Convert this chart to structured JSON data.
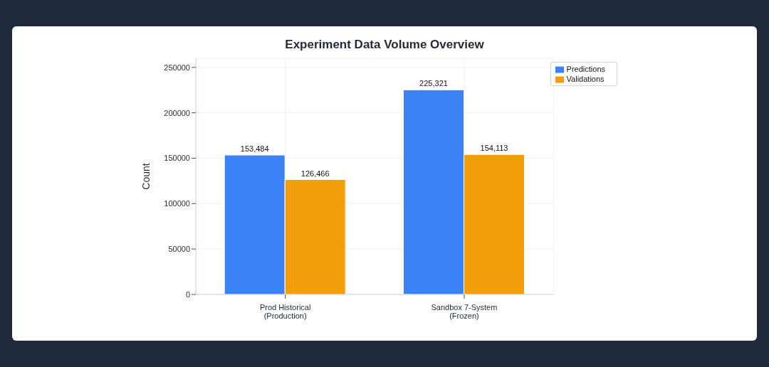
{
  "chart_data": {
    "type": "bar",
    "title": "Experiment Data Volume Overview",
    "ylabel": "Count",
    "categories": [
      "Prod Historical\n(Production)",
      "Sandbox 7-System\n(Frozen)"
    ],
    "series": [
      {
        "name": "Predictions",
        "color": "#3b82f6",
        "values": [
          153484,
          225321
        ],
        "value_labels": [
          "153,484",
          "225,321"
        ]
      },
      {
        "name": "Validations",
        "color": "#f59e0b",
        "values": [
          126466,
          154113
        ],
        "value_labels": [
          "126,466",
          "154,113"
        ]
      }
    ],
    "ylim": [
      0,
      260000
    ],
    "yticks": [
      0,
      50000,
      100000,
      150000,
      200000,
      250000
    ],
    "grid": true,
    "legend": "top right"
  }
}
